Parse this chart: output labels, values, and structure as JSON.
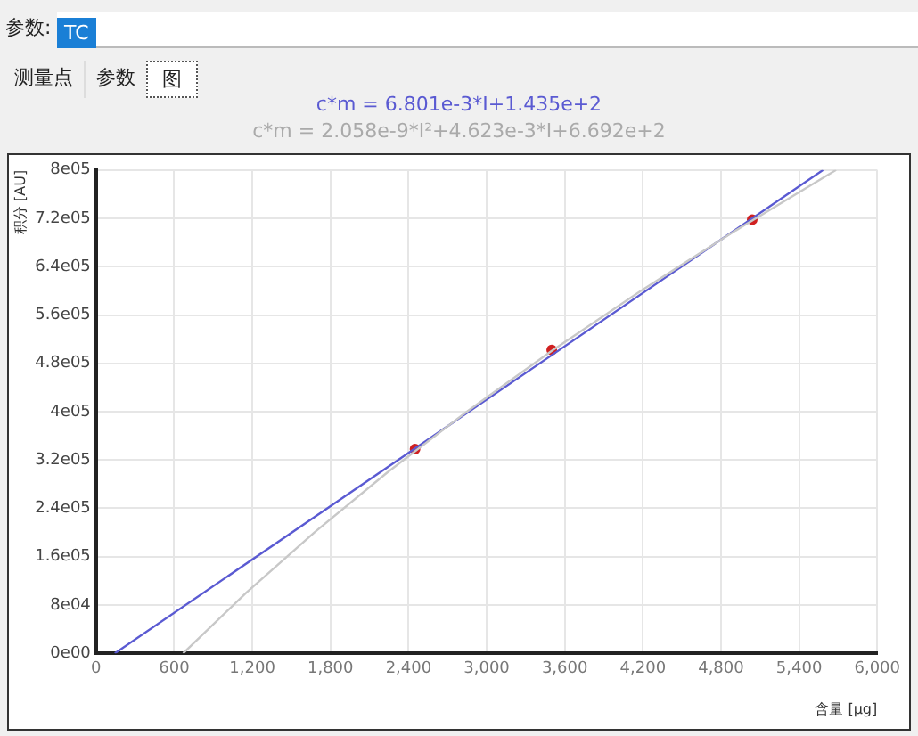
{
  "chart_data": {
    "type": "scatter",
    "title": "c*m = 6.801e-3*I+1.435e+2",
    "subtitle": "c*m = 2.058e-9*I²+4.623e-3*I+6.692e+2",
    "xlabel": "含量 [μg]",
    "ylabel": "积分 [AU]",
    "annotations": [
      "参数:",
      "TC",
      "测量点",
      "参数",
      "图"
    ],
    "series": [
      {
        "type": "line",
        "marker": "none",
        "color": "#c8c8c8",
        "x": [
          669,
          1152,
          1676,
          2241,
          2848,
          3495,
          4184,
          4914,
          5684
        ],
        "values": [
          0,
          100000,
          200000,
          300000,
          400000,
          500000,
          600000,
          700000,
          800000
        ]
      },
      {
        "type": "line",
        "marker": "none",
        "color": "#5a5ad2",
        "x": [
          144,
          5584
        ],
        "values": [
          0,
          800000
        ]
      },
      {
        "color": "#d02020",
        "x": [
          2450,
          3500,
          5040
        ],
        "values": [
          338000,
          502000,
          718000
        ]
      }
    ],
    "xlim": [
      0,
      6000
    ],
    "xticks": [
      0,
      600,
      {
        "value": 1200,
        "label": "1,200"
      },
      {
        "value": 1800,
        "label": "1,800"
      },
      {
        "value": 2400,
        "label": "2,400"
      },
      {
        "value": 3000,
        "label": "3,000"
      },
      {
        "value": 3600,
        "label": "3,600"
      },
      {
        "value": 4200,
        "label": "4,200"
      },
      {
        "value": 4800,
        "label": "4,800"
      },
      {
        "value": 5400,
        "label": "5,400"
      },
      {
        "value": 6000,
        "label": "6,000"
      }
    ],
    "ylim": [
      0,
      800000
    ],
    "yticks": [
      {
        "value": 0,
        "label": "0e00"
      },
      {
        "value": 80000,
        "label": "8e04"
      },
      {
        "value": 160000,
        "label": "1.6e05"
      },
      {
        "value": 240000,
        "label": "2.4e05"
      },
      {
        "value": 320000,
        "label": "3.2e05"
      },
      {
        "value": 400000,
        "label": "4e05"
      },
      {
        "value": 480000,
        "label": "4.8e05"
      },
      {
        "value": 560000,
        "label": "5.6e05"
      },
      {
        "value": 640000,
        "label": "6.4e05"
      },
      {
        "value": 720000,
        "label": "7.2e05"
      },
      {
        "value": 800000,
        "label": "8e05"
      }
    ],
    "grid": true,
    "legend": false,
    "marker": "circle",
    "line_style": "solid"
  }
}
